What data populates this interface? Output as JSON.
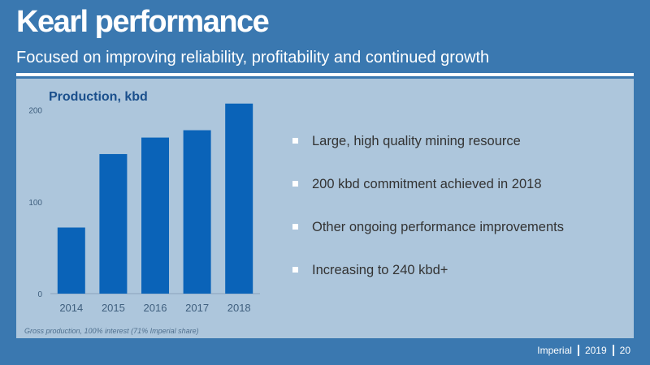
{
  "slide": {
    "title": "Kearl performance",
    "subtitle": "Focused on improving reliability, profitability and continued growth"
  },
  "chart_data": {
    "type": "bar",
    "title": "Production, kbd",
    "categories": [
      "2014",
      "2015",
      "2016",
      "2017",
      "2018"
    ],
    "values": [
      72,
      152,
      170,
      178,
      207
    ],
    "ylim": [
      0,
      220
    ],
    "yticks": [
      "0",
      "100",
      "200"
    ],
    "grid": false,
    "bar_color": "#0a63b8",
    "footnote": "Gross production, 100% interest (71% Imperial share)"
  },
  "bullets": [
    "Large, high quality mining resource",
    "200 kbd commitment achieved in 2018",
    "Other ongoing performance improvements",
    "Increasing to 240 kbd+"
  ],
  "footer": {
    "company": "Imperial",
    "year": "2019",
    "page": "20"
  },
  "colors": {
    "background": "#3a78b0",
    "panel": "#adc6dc",
    "accent": "#1a4f8c"
  }
}
